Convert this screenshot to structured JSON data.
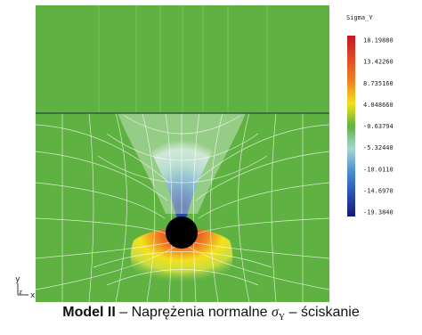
{
  "legend": {
    "title": "Sigma_Y",
    "values": [
      "18.19880",
      "13.42260",
      "8.735160",
      "4.048660",
      "-0.63794",
      "-5.32440",
      "-10.0110",
      "-14.6970",
      "-19.3840"
    ],
    "colors": [
      "#c8151e",
      "#e04a24",
      "#f07f22",
      "#f2e11d",
      "#5fb241",
      "#a6d6d2",
      "#4a8fd0",
      "#2a4fb4",
      "#141a70"
    ]
  },
  "axes": {
    "y": "y",
    "x": "x",
    "z": "z"
  },
  "caption": {
    "model": "Model II",
    "sep1": " – Naprężenia normalne ",
    "symbol": "σ",
    "sub": "Y",
    "sep2": " – ściskanie"
  },
  "colors": {
    "background": "#5fb241",
    "hole": "#000000",
    "mesh": "#ffffff",
    "section_line": "#2e5c3a"
  }
}
